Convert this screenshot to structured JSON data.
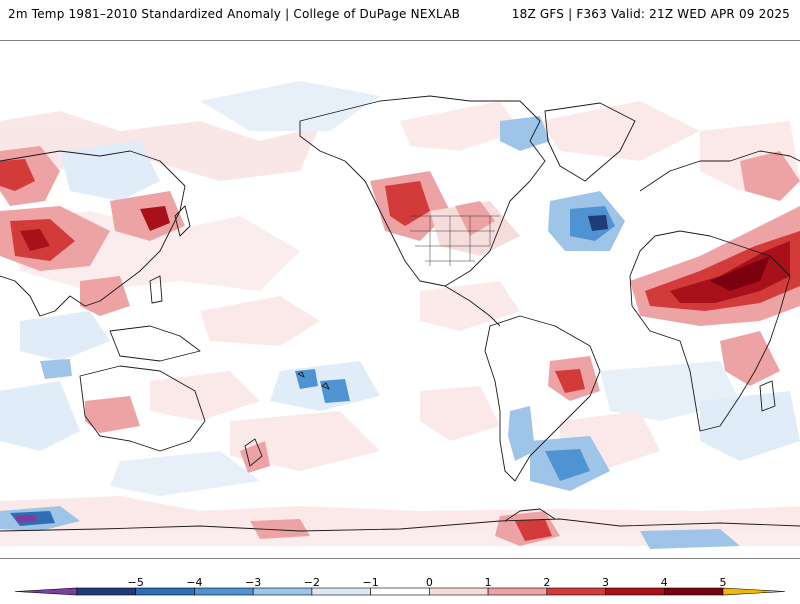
{
  "header": {
    "title": "2m Temp 1981–2010 Standardized Anomaly | College of DuPage NEXLAB",
    "run_info": "18Z GFS | F363 Valid: 21Z WED APR 09 2025"
  },
  "colorbar": {
    "labels": [
      "−5",
      "−4",
      "−3",
      "−2",
      "−1",
      "0",
      "1",
      "2",
      "3",
      "4",
      "5"
    ],
    "colors": [
      "#7c3fa0",
      "#1e3c78",
      "#2f6eb4",
      "#4f93d2",
      "#9ec4e8",
      "#dbe9f6",
      "#ffffff",
      "#f7dcdc",
      "#eda3a3",
      "#d33a3a",
      "#a8111a",
      "#7a0010",
      "#f5b800"
    ]
  }
}
